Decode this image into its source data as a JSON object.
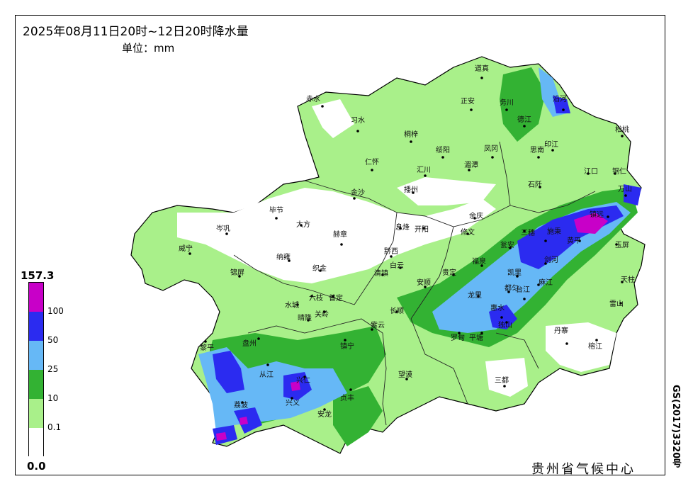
{
  "title": "2025年08月11日20时~12日20时降水量",
  "unit": "单位：mm",
  "legend": {
    "max": "157.3",
    "min": "0.0",
    "ticks": [
      "100",
      "50",
      "25",
      "10",
      "0.1"
    ],
    "colors": {
      "level_100": "#c800c8",
      "level_50": "#2b2bf0",
      "level_25": "#66b8f6",
      "level_10": "#33b233",
      "level_0_1": "#a9f08a",
      "level_0": "#ffffff"
    }
  },
  "center_name": "贵州省气候中心",
  "review_number": "GS(2017)3320号",
  "cities": [
    "道真",
    "赤水",
    "正安",
    "务川",
    "沿河",
    "习水",
    "桐梓",
    "绥阳",
    "凤冈",
    "德江",
    "思南",
    "印江",
    "松桃",
    "仁怀",
    "汇川",
    "湄潭",
    "江口",
    "铜仁",
    "金沙",
    "播州",
    "石阡",
    "万山",
    "毕节",
    "大方",
    "息烽",
    "开阳",
    "余庆",
    "施秉",
    "镇远",
    "岑巩",
    "赫章",
    "黔西",
    "修文",
    "瓮安",
    "黄平",
    "三穗",
    "玉屏",
    "威宁",
    "纳雍",
    "织金",
    "清镇",
    "白云",
    "贵定",
    "福泉",
    "凯里",
    "剑河",
    "天柱",
    "锦屏",
    "水城",
    "六枝",
    "普定",
    "安顺",
    "龙里",
    "都匀",
    "麻江",
    "台江",
    "雷山",
    "黎平",
    "盘州",
    "晴隆",
    "关岭",
    "镇宁",
    "紫云",
    "长顺",
    "惠水",
    "丹寨",
    "榕江",
    "从江",
    "兴仁",
    "贞丰",
    "望谟",
    "罗甸",
    "平塘",
    "独山",
    "三都",
    "荔波",
    "兴义",
    "安龙",
    "册亨"
  ]
}
